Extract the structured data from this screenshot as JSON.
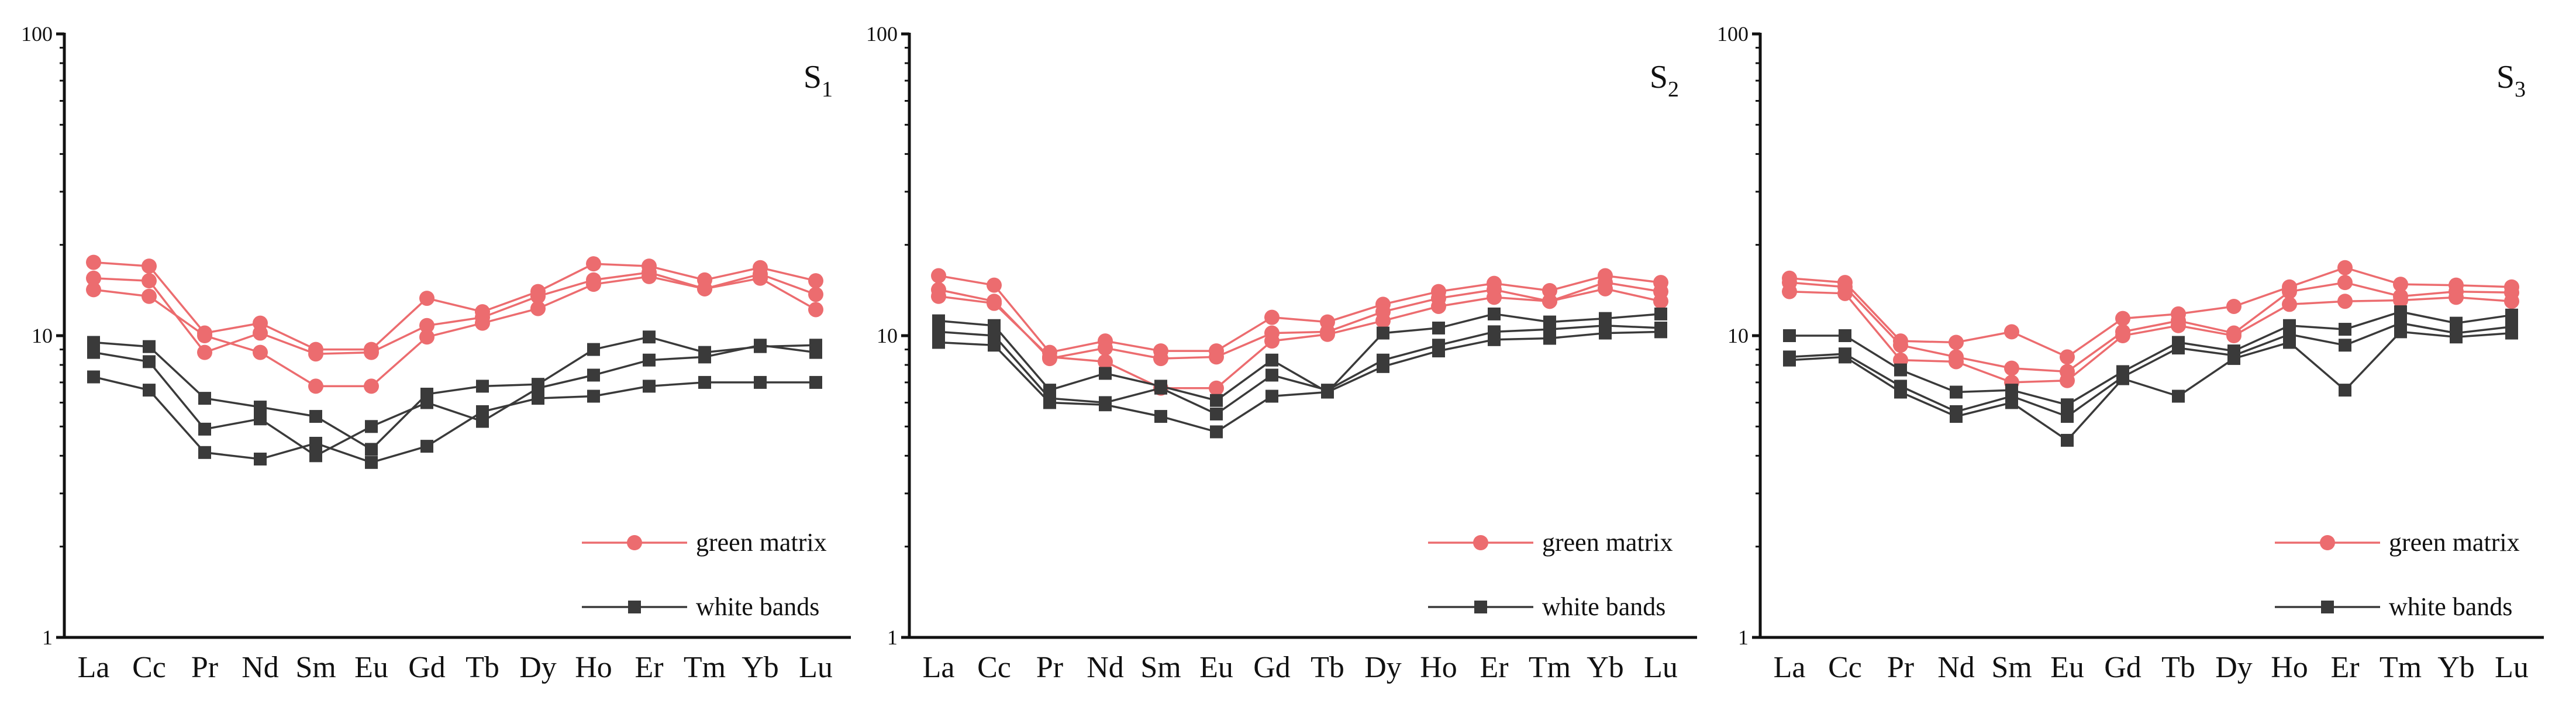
{
  "colors": {
    "green_matrix": "#ec6c6f",
    "white_bands": "#3a3a3a",
    "axis": "#111111"
  },
  "chart_data": [
    {
      "type": "line",
      "panel_label": "S",
      "panel_subscript": "1",
      "yscale": "log",
      "ylim": [
        1,
        100
      ],
      "ytick_labels": [
        "1",
        "10",
        "100"
      ],
      "grid": false,
      "legend_position": "bottom-right",
      "categories": [
        "La",
        "Ce",
        "Pr",
        "Nd",
        "Sm",
        "Eu",
        "Gd",
        "Tb",
        "Dy",
        "Ho",
        "Er",
        "Tm",
        "Yb",
        "Lu"
      ],
      "category_labels": [
        "La",
        "Cc",
        "Pr",
        "Nd",
        "Sm",
        "Eu",
        "Gd",
        "Tb",
        "Dy",
        "Ho",
        "Er",
        "Tm",
        "Yb",
        "Lu"
      ],
      "legend": [
        {
          "group": "green_matrix",
          "label": "green matrix"
        },
        {
          "group": "white_bands",
          "label": "white bands"
        }
      ],
      "series": [
        {
          "group": "green_matrix",
          "values": [
            17.5,
            17.0,
            10.2,
            11.0,
            9.0,
            9.0,
            13.3,
            12.0,
            14.0,
            17.3,
            17.0,
            15.3,
            16.8,
            15.2
          ]
        },
        {
          "group": "green_matrix",
          "values": [
            15.5,
            15.2,
            8.8,
            10.2,
            8.7,
            8.8,
            10.8,
            11.5,
            13.5,
            15.3,
            16.2,
            14.3,
            16.0,
            13.7
          ]
        },
        {
          "group": "green_matrix",
          "values": [
            14.2,
            13.5,
            10.0,
            8.8,
            6.8,
            6.8,
            9.9,
            11.0,
            12.3,
            14.8,
            15.7,
            14.3,
            15.5,
            12.2
          ]
        },
        {
          "group": "white_bands",
          "values": [
            9.5,
            9.2,
            6.2,
            5.8,
            5.4,
            4.2,
            6.4,
            6.8,
            6.9,
            9.0,
            9.9,
            8.8,
            9.2,
            9.3
          ]
        },
        {
          "group": "white_bands",
          "values": [
            8.8,
            8.2,
            4.9,
            5.3,
            4.0,
            5.0,
            6.0,
            5.2,
            6.7,
            7.4,
            8.3,
            8.5,
            9.3,
            8.8
          ]
        },
        {
          "group": "white_bands",
          "values": [
            7.3,
            6.6,
            4.1,
            3.9,
            4.4,
            3.8,
            4.3,
            5.6,
            6.2,
            6.3,
            6.8,
            7.0,
            7.0,
            7.0
          ]
        }
      ]
    },
    {
      "type": "line",
      "panel_label": "S",
      "panel_subscript": "2",
      "yscale": "log",
      "ylim": [
        1,
        100
      ],
      "ytick_labels": [
        "1",
        "10",
        "100"
      ],
      "grid": false,
      "legend_position": "bottom-right",
      "categories": [
        "La",
        "Ce",
        "Pr",
        "Nd",
        "Sm",
        "Eu",
        "Gd",
        "Tb",
        "Dy",
        "Ho",
        "Er",
        "Tm",
        "Yb",
        "Lu"
      ],
      "category_labels": [
        "La",
        "Cc",
        "Pr",
        "Nd",
        "Sm",
        "Eu",
        "Gd",
        "Tb",
        "Dy",
        "Ho",
        "Er",
        "Tm",
        "Yb",
        "Lu"
      ],
      "legend": [
        {
          "group": "green_matrix",
          "label": "green matrix"
        },
        {
          "group": "white_bands",
          "label": "white bands"
        }
      ],
      "series": [
        {
          "group": "green_matrix",
          "values": [
            15.8,
            14.7,
            8.8,
            9.6,
            8.9,
            8.9,
            11.5,
            11.1,
            12.7,
            14.0,
            14.9,
            14.1,
            15.8,
            15.0
          ]
        },
        {
          "group": "green_matrix",
          "values": [
            14.2,
            13.0,
            8.4,
            9.1,
            8.4,
            8.5,
            10.2,
            10.3,
            12.0,
            13.3,
            14.2,
            13.0,
            15.0,
            14.0
          ]
        },
        {
          "group": "green_matrix",
          "values": [
            13.5,
            12.8,
            8.5,
            8.2,
            6.7,
            6.7,
            9.6,
            10.1,
            11.2,
            12.5,
            13.4,
            13.0,
            14.3,
            13.0
          ]
        },
        {
          "group": "white_bands",
          "values": [
            11.2,
            10.8,
            6.6,
            7.5,
            6.8,
            6.1,
            8.3,
            6.5,
            10.2,
            10.6,
            11.8,
            11.1,
            11.4,
            11.8
          ]
        },
        {
          "group": "white_bands",
          "values": [
            10.3,
            10.0,
            6.2,
            6.0,
            6.7,
            5.5,
            7.4,
            6.6,
            8.3,
            9.3,
            10.3,
            10.5,
            10.8,
            10.6
          ]
        },
        {
          "group": "white_bands",
          "values": [
            9.5,
            9.3,
            6.0,
            5.9,
            5.4,
            4.8,
            6.3,
            6.5,
            7.9,
            8.9,
            9.7,
            9.8,
            10.2,
            10.3
          ]
        }
      ]
    },
    {
      "type": "line",
      "panel_label": "S",
      "panel_subscript": "3",
      "yscale": "log",
      "ylim": [
        1,
        100
      ],
      "ytick_labels": [
        "1",
        "10",
        "100"
      ],
      "grid": false,
      "legend_position": "bottom-right",
      "categories": [
        "La",
        "Ce",
        "Pr",
        "Nd",
        "Sm",
        "Eu",
        "Gd",
        "Tb",
        "Dy",
        "Ho",
        "Er",
        "Tm",
        "Yb",
        "Lu"
      ],
      "category_labels": [
        "La",
        "Cc",
        "Pr",
        "Nd",
        "Sm",
        "Eu",
        "Gd",
        "Tb",
        "Dy",
        "Ho",
        "Er",
        "Tm",
        "Yb",
        "Lu"
      ],
      "legend": [
        {
          "group": "green_matrix",
          "label": "green matrix"
        },
        {
          "group": "white_bands",
          "label": "white bands"
        }
      ],
      "series": [
        {
          "group": "green_matrix",
          "values": [
            15.5,
            15.0,
            9.6,
            9.5,
            10.3,
            8.5,
            11.4,
            11.8,
            12.5,
            14.5,
            16.8,
            14.8,
            14.7,
            14.5
          ]
        },
        {
          "group": "green_matrix",
          "values": [
            15.0,
            14.5,
            9.3,
            8.5,
            7.8,
            7.6,
            10.3,
            11.2,
            10.2,
            14.0,
            15.0,
            13.5,
            14.0,
            13.9
          ]
        },
        {
          "group": "green_matrix",
          "values": [
            14.0,
            13.8,
            8.3,
            8.2,
            7.0,
            7.1,
            10.0,
            10.8,
            10.0,
            12.7,
            13.0,
            13.1,
            13.4,
            13.0
          ]
        },
        {
          "group": "white_bands",
          "values": [
            10.0,
            10.0,
            7.7,
            6.5,
            6.6,
            5.9,
            7.6,
            9.5,
            8.9,
            10.8,
            10.5,
            12.0,
            11.0,
            11.7
          ]
        },
        {
          "group": "white_bands",
          "values": [
            8.5,
            8.7,
            6.8,
            5.6,
            6.3,
            5.4,
            7.3,
            9.1,
            8.6,
            10.1,
            9.3,
            11.0,
            10.2,
            10.7
          ]
        },
        {
          "group": "white_bands",
          "values": [
            8.3,
            8.5,
            6.5,
            5.4,
            6.0,
            4.5,
            7.2,
            6.3,
            8.4,
            9.5,
            6.6,
            10.3,
            9.9,
            10.2
          ]
        }
      ]
    }
  ]
}
